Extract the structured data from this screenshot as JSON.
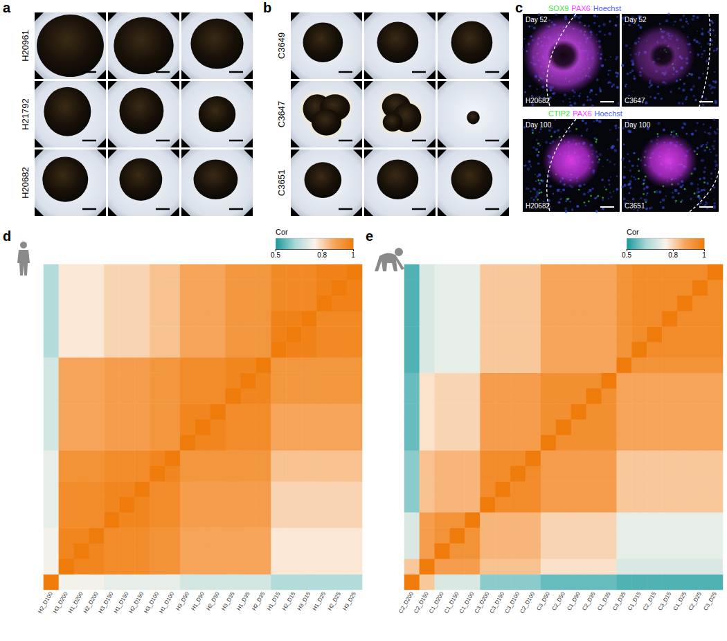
{
  "panels": [
    {
      "label": "a",
      "rows": [
        "H20961",
        "H21792",
        "H20682"
      ]
    },
    {
      "label": "b",
      "rows": [
        "C3649",
        "C3647",
        "C3651"
      ]
    },
    {
      "label": "c",
      "rows": [
        {
          "stains": [
            {
              "text": "SOX9",
              "color": "#3ddc3d"
            },
            {
              "text": "PAX6",
              "color": "#ff3cff"
            },
            {
              "text": "Hoechst",
              "color": "#4a5cff"
            }
          ],
          "images": [
            {
              "day": "Day 52",
              "sample": "H20682"
            },
            {
              "day": "Day 52",
              "sample": "C3647"
            }
          ]
        },
        {
          "stains": [
            {
              "text": "CTIP2",
              "color": "#3ddc3d"
            },
            {
              "text": "PAX6",
              "color": "#ff3cff"
            },
            {
              "text": "Hoechst",
              "color": "#4a5cff"
            }
          ],
          "images": [
            {
              "day": "Day 100",
              "sample": "H20682"
            },
            {
              "day": "Day 100",
              "sample": "C3651"
            }
          ]
        }
      ]
    }
  ],
  "chart_data": [
    {
      "type": "heatmap",
      "label": "d",
      "tick_labels": "x",
      "categories": [
        "H2_D100",
        "H3_D200",
        "H1_D200",
        "H2_D200",
        "H3_D150",
        "H1_D150",
        "H2_D150",
        "H3_D100",
        "H1_D100",
        "H3_D50",
        "H1_D50",
        "H2_D50",
        "H3_D35",
        "H1_D35",
        "H2_D35",
        "H1_D15",
        "H2_D15",
        "H3_D15",
        "H1_D25",
        "H2_D25",
        "H3_D25"
      ],
      "cells": [
        [
          1,
          0.74,
          0.74,
          0.74,
          0.72,
          0.72,
          0.72,
          0.72,
          0.72,
          0.69,
          0.69,
          0.69,
          0.69,
          0.69,
          0.69,
          0.64,
          0.64,
          0.64,
          0.64,
          0.64,
          0.64
        ],
        [
          0.74,
          1,
          0.97,
          0.97,
          0.95,
          0.95,
          0.95,
          0.93,
          0.93,
          0.88,
          0.88,
          0.88,
          0.88,
          0.88,
          0.88,
          0.77,
          0.77,
          0.77,
          0.77,
          0.77,
          0.77
        ],
        [
          0.74,
          0.97,
          1,
          0.97,
          0.95,
          0.95,
          0.95,
          0.93,
          0.93,
          0.88,
          0.88,
          0.88,
          0.88,
          0.88,
          0.88,
          0.77,
          0.77,
          0.77,
          0.77,
          0.77,
          0.77
        ],
        [
          0.74,
          0.97,
          0.97,
          1,
          0.95,
          0.95,
          0.95,
          0.93,
          0.93,
          0.88,
          0.88,
          0.88,
          0.88,
          0.88,
          0.88,
          0.77,
          0.77,
          0.77,
          0.77,
          0.77,
          0.77
        ],
        [
          0.72,
          0.95,
          0.95,
          0.95,
          1,
          0.97,
          0.97,
          0.95,
          0.95,
          0.9,
          0.9,
          0.9,
          0.9,
          0.9,
          0.9,
          0.8,
          0.8,
          0.8,
          0.8,
          0.8,
          0.8
        ],
        [
          0.72,
          0.95,
          0.95,
          0.95,
          0.97,
          1,
          0.97,
          0.95,
          0.95,
          0.9,
          0.9,
          0.9,
          0.9,
          0.9,
          0.9,
          0.8,
          0.8,
          0.8,
          0.8,
          0.8,
          0.8
        ],
        [
          0.72,
          0.95,
          0.95,
          0.95,
          0.97,
          0.97,
          1,
          0.95,
          0.95,
          0.9,
          0.9,
          0.9,
          0.9,
          0.9,
          0.9,
          0.8,
          0.8,
          0.8,
          0.8,
          0.8,
          0.8
        ],
        [
          0.72,
          0.93,
          0.93,
          0.93,
          0.95,
          0.95,
          0.95,
          1,
          0.97,
          0.92,
          0.92,
          0.92,
          0.92,
          0.92,
          0.92,
          0.83,
          0.83,
          0.83,
          0.83,
          0.83,
          0.83
        ],
        [
          0.72,
          0.93,
          0.93,
          0.93,
          0.95,
          0.95,
          0.95,
          0.97,
          1,
          0.92,
          0.92,
          0.92,
          0.92,
          0.92,
          0.92,
          0.83,
          0.83,
          0.83,
          0.83,
          0.83,
          0.83
        ],
        [
          0.69,
          0.88,
          0.88,
          0.88,
          0.9,
          0.9,
          0.9,
          0.92,
          0.92,
          1,
          0.97,
          0.97,
          0.95,
          0.95,
          0.95,
          0.88,
          0.88,
          0.88,
          0.88,
          0.88,
          0.88
        ],
        [
          0.69,
          0.88,
          0.88,
          0.88,
          0.9,
          0.9,
          0.9,
          0.92,
          0.92,
          0.97,
          1,
          0.97,
          0.95,
          0.95,
          0.95,
          0.88,
          0.88,
          0.88,
          0.88,
          0.88,
          0.88
        ],
        [
          0.69,
          0.88,
          0.88,
          0.88,
          0.9,
          0.9,
          0.9,
          0.92,
          0.92,
          0.97,
          0.97,
          1,
          0.95,
          0.95,
          0.95,
          0.88,
          0.88,
          0.88,
          0.88,
          0.88,
          0.88
        ],
        [
          0.69,
          0.88,
          0.88,
          0.88,
          0.9,
          0.9,
          0.9,
          0.92,
          0.92,
          0.95,
          0.95,
          0.95,
          1,
          0.97,
          0.97,
          0.92,
          0.92,
          0.92,
          0.92,
          0.92,
          0.92
        ],
        [
          0.69,
          0.88,
          0.88,
          0.88,
          0.9,
          0.9,
          0.9,
          0.92,
          0.92,
          0.95,
          0.95,
          0.95,
          0.97,
          1,
          0.97,
          0.92,
          0.92,
          0.92,
          0.92,
          0.92,
          0.92
        ],
        [
          0.69,
          0.88,
          0.88,
          0.88,
          0.9,
          0.9,
          0.9,
          0.92,
          0.92,
          0.95,
          0.95,
          0.95,
          0.97,
          0.97,
          1,
          0.92,
          0.92,
          0.92,
          0.92,
          0.92,
          0.92
        ],
        [
          0.64,
          0.77,
          0.77,
          0.77,
          0.8,
          0.8,
          0.8,
          0.83,
          0.83,
          0.88,
          0.88,
          0.88,
          0.92,
          0.92,
          0.92,
          1,
          0.98,
          0.98,
          0.96,
          0.96,
          0.96
        ],
        [
          0.64,
          0.77,
          0.77,
          0.77,
          0.8,
          0.8,
          0.8,
          0.83,
          0.83,
          0.88,
          0.88,
          0.88,
          0.92,
          0.92,
          0.92,
          0.98,
          1,
          0.98,
          0.96,
          0.96,
          0.96
        ],
        [
          0.64,
          0.77,
          0.77,
          0.77,
          0.8,
          0.8,
          0.8,
          0.83,
          0.83,
          0.88,
          0.88,
          0.88,
          0.92,
          0.92,
          0.92,
          0.98,
          0.98,
          1,
          0.96,
          0.96,
          0.96
        ],
        [
          0.64,
          0.77,
          0.77,
          0.77,
          0.8,
          0.8,
          0.8,
          0.83,
          0.83,
          0.88,
          0.88,
          0.88,
          0.92,
          0.92,
          0.92,
          0.96,
          0.96,
          0.96,
          1,
          0.98,
          0.98
        ],
        [
          0.64,
          0.77,
          0.77,
          0.77,
          0.8,
          0.8,
          0.8,
          0.83,
          0.83,
          0.88,
          0.88,
          0.88,
          0.92,
          0.92,
          0.92,
          0.96,
          0.96,
          0.96,
          0.98,
          1,
          0.98
        ],
        [
          0.64,
          0.77,
          0.77,
          0.77,
          0.8,
          0.8,
          0.8,
          0.83,
          0.83,
          0.88,
          0.88,
          0.88,
          0.92,
          0.92,
          0.92,
          0.96,
          0.96,
          0.96,
          0.98,
          0.98,
          1
        ]
      ],
      "colorbar": {
        "title": "Cor",
        "range": [
          0.5,
          1
        ],
        "ticks": [
          0.5,
          0.8,
          1
        ]
      }
    },
    {
      "type": "heatmap",
      "label": "e",
      "tick_labels": "x",
      "categories": [
        "C2_D200",
        "C2_D150",
        "C1_D200",
        "C1_D150",
        "C1_D100",
        "C3_D200",
        "C3_D150",
        "C3_D100",
        "C2_D100",
        "C3_D50",
        "C2_D50",
        "C1_D50",
        "C2_D35",
        "C1_D35",
        "C3_D35",
        "C1_D15",
        "C2_D15",
        "C3_D15",
        "C1_D25",
        "C2_D25",
        "C3_D25"
      ],
      "cells": [
        [
          1,
          0.82,
          0.7,
          0.7,
          0.7,
          0.6,
          0.6,
          0.6,
          0.6,
          0.57,
          0.57,
          0.57,
          0.57,
          0.57,
          0.55,
          0.55,
          0.55,
          0.55,
          0.55,
          0.55,
          0.55
        ],
        [
          0.82,
          1,
          0.9,
          0.9,
          0.9,
          0.83,
          0.83,
          0.83,
          0.83,
          0.78,
          0.78,
          0.78,
          0.78,
          0.78,
          0.7,
          0.7,
          0.7,
          0.7,
          0.7,
          0.7,
          0.7
        ],
        [
          0.7,
          0.9,
          1,
          0.93,
          0.93,
          0.85,
          0.85,
          0.85,
          0.85,
          0.8,
          0.8,
          0.8,
          0.8,
          0.8,
          0.72,
          0.72,
          0.72,
          0.72,
          0.72,
          0.72,
          0.72
        ],
        [
          0.7,
          0.9,
          0.93,
          1,
          0.93,
          0.85,
          0.85,
          0.85,
          0.85,
          0.8,
          0.8,
          0.8,
          0.8,
          0.8,
          0.72,
          0.72,
          0.72,
          0.72,
          0.72,
          0.72,
          0.72
        ],
        [
          0.7,
          0.9,
          0.93,
          0.93,
          1,
          0.85,
          0.85,
          0.85,
          0.85,
          0.8,
          0.8,
          0.8,
          0.8,
          0.8,
          0.72,
          0.72,
          0.72,
          0.72,
          0.72,
          0.72,
          0.72
        ],
        [
          0.6,
          0.83,
          0.85,
          0.85,
          0.85,
          1,
          0.95,
          0.95,
          0.95,
          0.9,
          0.9,
          0.9,
          0.9,
          0.9,
          0.82,
          0.82,
          0.82,
          0.82,
          0.82,
          0.82,
          0.82
        ],
        [
          0.6,
          0.83,
          0.85,
          0.85,
          0.85,
          0.95,
          1,
          0.95,
          0.95,
          0.9,
          0.9,
          0.9,
          0.9,
          0.9,
          0.82,
          0.82,
          0.82,
          0.82,
          0.82,
          0.82,
          0.82
        ],
        [
          0.6,
          0.83,
          0.85,
          0.85,
          0.85,
          0.95,
          0.95,
          1,
          0.95,
          0.9,
          0.9,
          0.9,
          0.9,
          0.9,
          0.82,
          0.82,
          0.82,
          0.82,
          0.82,
          0.82,
          0.82
        ],
        [
          0.6,
          0.83,
          0.85,
          0.85,
          0.85,
          0.95,
          0.95,
          0.95,
          1,
          0.9,
          0.9,
          0.9,
          0.9,
          0.9,
          0.82,
          0.82,
          0.82,
          0.82,
          0.82,
          0.82,
          0.82
        ],
        [
          0.57,
          0.78,
          0.8,
          0.8,
          0.8,
          0.9,
          0.9,
          0.9,
          0.9,
          1,
          0.94,
          0.94,
          0.94,
          0.94,
          0.88,
          0.88,
          0.88,
          0.88,
          0.88,
          0.88,
          0.88
        ],
        [
          0.57,
          0.78,
          0.8,
          0.8,
          0.8,
          0.9,
          0.9,
          0.9,
          0.9,
          0.94,
          1,
          0.94,
          0.94,
          0.94,
          0.88,
          0.88,
          0.88,
          0.88,
          0.88,
          0.88,
          0.88
        ],
        [
          0.57,
          0.78,
          0.8,
          0.8,
          0.8,
          0.9,
          0.9,
          0.9,
          0.9,
          0.94,
          0.94,
          1,
          0.94,
          0.94,
          0.88,
          0.88,
          0.88,
          0.88,
          0.88,
          0.88,
          0.88
        ],
        [
          0.57,
          0.78,
          0.8,
          0.8,
          0.8,
          0.9,
          0.9,
          0.9,
          0.9,
          0.94,
          0.94,
          0.94,
          1,
          0.94,
          0.88,
          0.88,
          0.88,
          0.88,
          0.88,
          0.88,
          0.88
        ],
        [
          0.57,
          0.78,
          0.8,
          0.8,
          0.8,
          0.9,
          0.9,
          0.9,
          0.9,
          0.94,
          0.94,
          0.94,
          0.94,
          1,
          0.88,
          0.88,
          0.88,
          0.88,
          0.88,
          0.88,
          0.88
        ],
        [
          0.55,
          0.7,
          0.72,
          0.72,
          0.72,
          0.82,
          0.82,
          0.82,
          0.82,
          0.88,
          0.88,
          0.88,
          0.88,
          0.88,
          1,
          0.93,
          0.93,
          0.93,
          0.93,
          0.93,
          0.93
        ],
        [
          0.55,
          0.7,
          0.72,
          0.72,
          0.72,
          0.82,
          0.82,
          0.82,
          0.82,
          0.88,
          0.88,
          0.88,
          0.88,
          0.88,
          0.93,
          1,
          0.95,
          0.95,
          0.95,
          0.95,
          0.95
        ],
        [
          0.55,
          0.7,
          0.72,
          0.72,
          0.72,
          0.82,
          0.82,
          0.82,
          0.82,
          0.88,
          0.88,
          0.88,
          0.88,
          0.88,
          0.93,
          0.95,
          1,
          0.95,
          0.95,
          0.95,
          0.95
        ],
        [
          0.55,
          0.7,
          0.72,
          0.72,
          0.72,
          0.82,
          0.82,
          0.82,
          0.82,
          0.88,
          0.88,
          0.88,
          0.88,
          0.88,
          0.93,
          0.95,
          0.95,
          1,
          0.95,
          0.95,
          0.95
        ],
        [
          0.55,
          0.7,
          0.72,
          0.72,
          0.72,
          0.82,
          0.82,
          0.82,
          0.82,
          0.88,
          0.88,
          0.88,
          0.88,
          0.88,
          0.93,
          0.95,
          0.95,
          0.95,
          1,
          0.95,
          0.95
        ],
        [
          0.55,
          0.7,
          0.72,
          0.72,
          0.72,
          0.82,
          0.82,
          0.82,
          0.82,
          0.88,
          0.88,
          0.88,
          0.88,
          0.88,
          0.93,
          0.95,
          0.95,
          0.95,
          0.95,
          1,
          0.95
        ],
        [
          0.55,
          0.7,
          0.72,
          0.72,
          0.72,
          0.82,
          0.82,
          0.82,
          0.82,
          0.88,
          0.88,
          0.88,
          0.88,
          0.88,
          0.93,
          0.95,
          0.95,
          0.95,
          0.95,
          0.95,
          1
        ]
      ],
      "colorbar": {
        "title": "Cor",
        "range": [
          0.5,
          1
        ],
        "ticks": [
          0.5,
          0.8,
          1
        ]
      }
    }
  ]
}
